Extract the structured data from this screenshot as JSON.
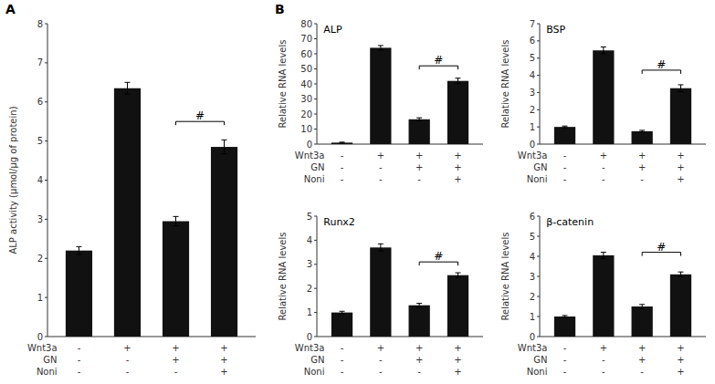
{
  "chart_data": [
    {
      "type": "bar",
      "y_label": "ALP activity (μmol/μg of protein)",
      "categories": [
        [
          "-",
          "-",
          "-"
        ],
        [
          "+",
          "-",
          "-"
        ],
        [
          "+",
          "+",
          "-"
        ],
        [
          "+",
          "+",
          "+"
        ]
      ],
      "category_levels": [
        "Wnt3a",
        "GN",
        "Noni"
      ],
      "values": [
        2.2,
        6.35,
        2.95,
        4.85
      ],
      "errors": [
        0.1,
        0.15,
        0.12,
        0.18
      ],
      "color": "#111111",
      "ylim": [
        0,
        8
      ],
      "yticks": [
        0,
        1,
        2,
        3,
        4,
        5,
        6,
        7,
        8
      ],
      "grid": false,
      "annotations": [
        {
          "text": "A"
        },
        {
          "text": "#",
          "from": 2,
          "to": 3,
          "y": 5.5
        }
      ]
    },
    {
      "type": "bar",
      "title": "ALP",
      "y_label": "Relative RNA levels",
      "categories": [
        [
          "-",
          "-",
          "-"
        ],
        [
          "+",
          "-",
          "-"
        ],
        [
          "+",
          "+",
          "-"
        ],
        [
          "+",
          "+",
          "+"
        ]
      ],
      "category_levels": [
        "Wnt3a",
        "GN",
        "Noni"
      ],
      "values": [
        1.0,
        64.0,
        16.5,
        42.0
      ],
      "errors": [
        0.3,
        1.5,
        1.0,
        1.8
      ],
      "color": "#111111",
      "ylim": [
        0,
        80
      ],
      "yticks": [
        0,
        10,
        20,
        30,
        40,
        50,
        60,
        70,
        80
      ],
      "grid": false,
      "annotations": [
        {
          "text": "B"
        },
        {
          "text": "#",
          "from": 2,
          "to": 3,
          "y": 52
        }
      ]
    },
    {
      "type": "bar",
      "title": "BSP",
      "y_label": "Relative RNA levels",
      "categories": [
        [
          "-",
          "-",
          "-"
        ],
        [
          "+",
          "-",
          "-"
        ],
        [
          "+",
          "+",
          "-"
        ],
        [
          "+",
          "+",
          "+"
        ]
      ],
      "category_levels": [
        "Wnt3a",
        "GN",
        "Noni"
      ],
      "values": [
        1.0,
        5.45,
        0.75,
        3.25
      ],
      "errors": [
        0.05,
        0.2,
        0.05,
        0.2
      ],
      "color": "#111111",
      "ylim": [
        0,
        7
      ],
      "yticks": [
        0,
        1,
        2,
        3,
        4,
        5,
        6,
        7
      ],
      "grid": false,
      "annotations": [
        {
          "text": "#",
          "from": 2,
          "to": 3,
          "y": 4.3
        }
      ]
    },
    {
      "type": "bar",
      "title": "Runx2",
      "y_label": "Relative RNA levels",
      "categories": [
        [
          "-",
          "-",
          "-"
        ],
        [
          "+",
          "-",
          "-"
        ],
        [
          "+",
          "+",
          "-"
        ],
        [
          "+",
          "+",
          "+"
        ]
      ],
      "category_levels": [
        "Wnt3a",
        "GN",
        "Noni"
      ],
      "values": [
        1.0,
        3.7,
        1.3,
        2.55
      ],
      "errors": [
        0.05,
        0.15,
        0.08,
        0.1
      ],
      "color": "#111111",
      "ylim": [
        0,
        5
      ],
      "yticks": [
        0,
        1,
        2,
        3,
        4,
        5
      ],
      "grid": false,
      "annotations": [
        {
          "text": "#",
          "from": 2,
          "to": 3,
          "y": 3.1
        }
      ]
    },
    {
      "type": "bar",
      "title": "β-catenin",
      "y_label": "Relative RNA levels",
      "categories": [
        [
          "-",
          "-",
          "-"
        ],
        [
          "+",
          "-",
          "-"
        ],
        [
          "+",
          "+",
          "-"
        ],
        [
          "+",
          "+",
          "+"
        ]
      ],
      "category_levels": [
        "Wnt3a",
        "GN",
        "Noni"
      ],
      "values": [
        1.0,
        4.05,
        1.5,
        3.1
      ],
      "errors": [
        0.05,
        0.15,
        0.1,
        0.12
      ],
      "color": "#111111",
      "ylim": [
        0,
        6
      ],
      "yticks": [
        0,
        1,
        2,
        3,
        4,
        5,
        6
      ],
      "grid": false,
      "annotations": [
        {
          "text": "#",
          "from": 2,
          "to": 3,
          "y": 4.2
        }
      ]
    }
  ]
}
